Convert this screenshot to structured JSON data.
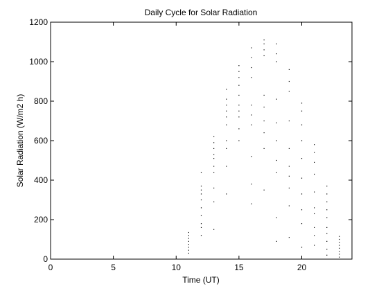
{
  "chart_data": {
    "type": "scatter",
    "title": "Daily Cycle for Solar Radiation",
    "xlabel": "Time (UT)",
    "ylabel": "Solar Radiation (W/m2 h)",
    "xlim": [
      0,
      24
    ],
    "ylim": [
      0,
      1200
    ],
    "xticks": [
      0,
      5,
      10,
      15,
      20
    ],
    "yticks": [
      0,
      200,
      400,
      600,
      800,
      1000,
      1200
    ],
    "grid": false,
    "legend": "none",
    "marker_color": "#000000",
    "series": [
      {
        "points": [
          [
            11,
            30
          ],
          [
            11,
            45
          ],
          [
            11,
            60
          ],
          [
            11,
            75
          ],
          [
            11,
            90
          ],
          [
            11,
            105
          ],
          [
            11,
            120
          ],
          [
            11,
            135
          ],
          [
            12,
            120
          ],
          [
            12,
            160
          ],
          [
            12,
            180
          ],
          [
            12,
            220
          ],
          [
            12,
            260
          ],
          [
            12,
            300
          ],
          [
            12,
            330
          ],
          [
            12,
            350
          ],
          [
            12,
            370
          ],
          [
            12,
            440
          ],
          [
            13,
            150
          ],
          [
            13,
            290
          ],
          [
            13,
            360
          ],
          [
            13,
            440
          ],
          [
            13,
            470
          ],
          [
            13,
            510
          ],
          [
            13,
            530
          ],
          [
            13,
            560
          ],
          [
            13,
            590
          ],
          [
            13,
            620
          ],
          [
            14,
            330
          ],
          [
            14,
            470
          ],
          [
            14,
            560
          ],
          [
            14,
            600
          ],
          [
            14,
            680
          ],
          [
            14,
            720
          ],
          [
            14,
            750
          ],
          [
            14,
            780
          ],
          [
            14,
            810
          ],
          [
            14,
            860
          ],
          [
            15,
            600
          ],
          [
            15,
            660
          ],
          [
            15,
            720
          ],
          [
            15,
            750
          ],
          [
            15,
            780
          ],
          [
            15,
            830
          ],
          [
            15,
            880
          ],
          [
            15,
            920
          ],
          [
            15,
            950
          ],
          [
            15,
            980
          ],
          [
            16,
            280
          ],
          [
            16,
            380
          ],
          [
            16,
            520
          ],
          [
            16,
            680
          ],
          [
            16,
            730
          ],
          [
            16,
            780
          ],
          [
            16,
            920
          ],
          [
            16,
            970
          ],
          [
            16,
            1020
          ],
          [
            16,
            1070
          ],
          [
            17,
            350
          ],
          [
            17,
            560
          ],
          [
            17,
            640
          ],
          [
            17,
            700
          ],
          [
            17,
            770
          ],
          [
            17,
            830
          ],
          [
            17,
            1030
          ],
          [
            17,
            1060
          ],
          [
            17,
            1090
          ],
          [
            17,
            1110
          ],
          [
            18,
            90
          ],
          [
            18,
            210
          ],
          [
            18,
            440
          ],
          [
            18,
            500
          ],
          [
            18,
            600
          ],
          [
            18,
            690
          ],
          [
            18,
            810
          ],
          [
            18,
            1000
          ],
          [
            18,
            1040
          ],
          [
            18,
            1090
          ],
          [
            19,
            110
          ],
          [
            19,
            270
          ],
          [
            19,
            360
          ],
          [
            19,
            420
          ],
          [
            19,
            470
          ],
          [
            19,
            560
          ],
          [
            19,
            700
          ],
          [
            19,
            850
          ],
          [
            19,
            900
          ],
          [
            19,
            960
          ],
          [
            20,
            60
          ],
          [
            20,
            180
          ],
          [
            20,
            250
          ],
          [
            20,
            330
          ],
          [
            20,
            410
          ],
          [
            20,
            510
          ],
          [
            20,
            600
          ],
          [
            20,
            680
          ],
          [
            20,
            750
          ],
          [
            20,
            790
          ],
          [
            21,
            70
          ],
          [
            21,
            120
          ],
          [
            21,
            160
          ],
          [
            21,
            230
          ],
          [
            21,
            260
          ],
          [
            21,
            340
          ],
          [
            21,
            430
          ],
          [
            21,
            490
          ],
          [
            21,
            540
          ],
          [
            21,
            580
          ],
          [
            22,
            20
          ],
          [
            22,
            50
          ],
          [
            22,
            90
          ],
          [
            22,
            130
          ],
          [
            22,
            160
          ],
          [
            22,
            210
          ],
          [
            22,
            250
          ],
          [
            22,
            290
          ],
          [
            22,
            330
          ],
          [
            22,
            370
          ],
          [
            23,
            10
          ],
          [
            23,
            25
          ],
          [
            23,
            40
          ],
          [
            23,
            55
          ],
          [
            23,
            70
          ],
          [
            23,
            85
          ],
          [
            23,
            100
          ],
          [
            23,
            115
          ]
        ]
      }
    ]
  }
}
